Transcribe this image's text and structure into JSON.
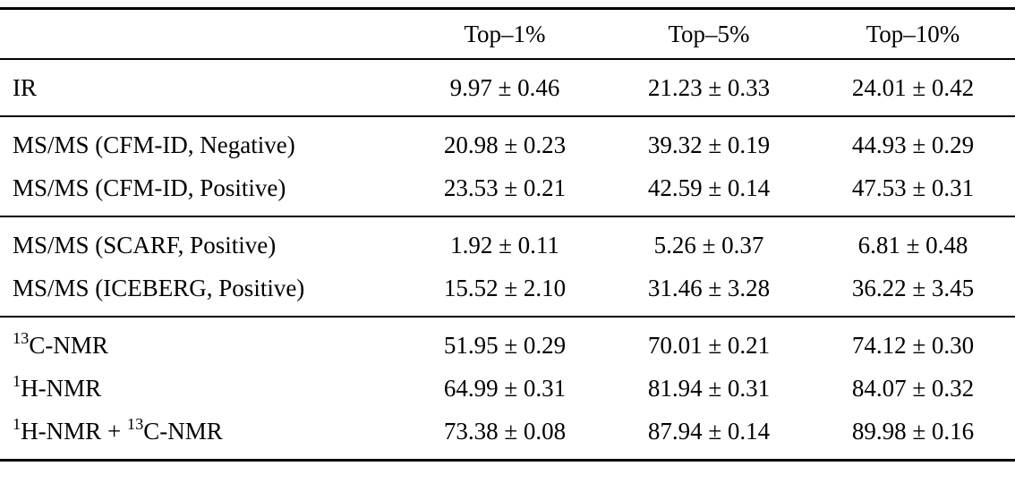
{
  "table": {
    "header": {
      "col0": "",
      "cols": [
        "Top–1%",
        "Top–5%",
        "Top–10%"
      ]
    },
    "groups": [
      {
        "rows": [
          {
            "label": [
              {
                "text": "IR"
              }
            ],
            "values": [
              "9.97 ± 0.46",
              "21.23 ± 0.33",
              "24.01 ± 0.42"
            ]
          }
        ]
      },
      {
        "rows": [
          {
            "label": [
              {
                "text": "MS/MS (CFM-ID, Negative)"
              }
            ],
            "values": [
              "20.98 ± 0.23",
              "39.32 ± 0.19",
              "44.93 ± 0.29"
            ]
          },
          {
            "label": [
              {
                "text": "MS/MS (CFM-ID, Positive)"
              }
            ],
            "values": [
              "23.53 ± 0.21",
              "42.59 ± 0.14",
              "47.53 ± 0.31"
            ]
          }
        ]
      },
      {
        "rows": [
          {
            "label": [
              {
                "text": "MS/MS (SCARF, Positive)"
              }
            ],
            "values": [
              "1.92 ± 0.11",
              "5.26 ± 0.37",
              "6.81 ± 0.48"
            ]
          },
          {
            "label": [
              {
                "text": "MS/MS (ICEBERG, Positive)"
              }
            ],
            "values": [
              "15.52 ± 2.10",
              "31.46 ± 3.28",
              "36.22 ± 3.45"
            ]
          }
        ]
      },
      {
        "rows": [
          {
            "label": [
              {
                "sup": "13"
              },
              {
                "text": "C-NMR"
              }
            ],
            "values": [
              "51.95 ± 0.29",
              "70.01 ± 0.21",
              "74.12 ± 0.30"
            ]
          },
          {
            "label": [
              {
                "sup": "1"
              },
              {
                "text": "H-NMR"
              }
            ],
            "values": [
              "64.99 ± 0.31",
              "81.94 ± 0.31",
              "84.07 ± 0.32"
            ]
          },
          {
            "label": [
              {
                "sup": "1"
              },
              {
                "text": "H-NMR + "
              },
              {
                "sup": "13"
              },
              {
                "text": "C-NMR"
              }
            ],
            "values": [
              "73.38 ± 0.08",
              "87.94 ± 0.14",
              "89.98 ± 0.16"
            ]
          }
        ]
      }
    ]
  }
}
